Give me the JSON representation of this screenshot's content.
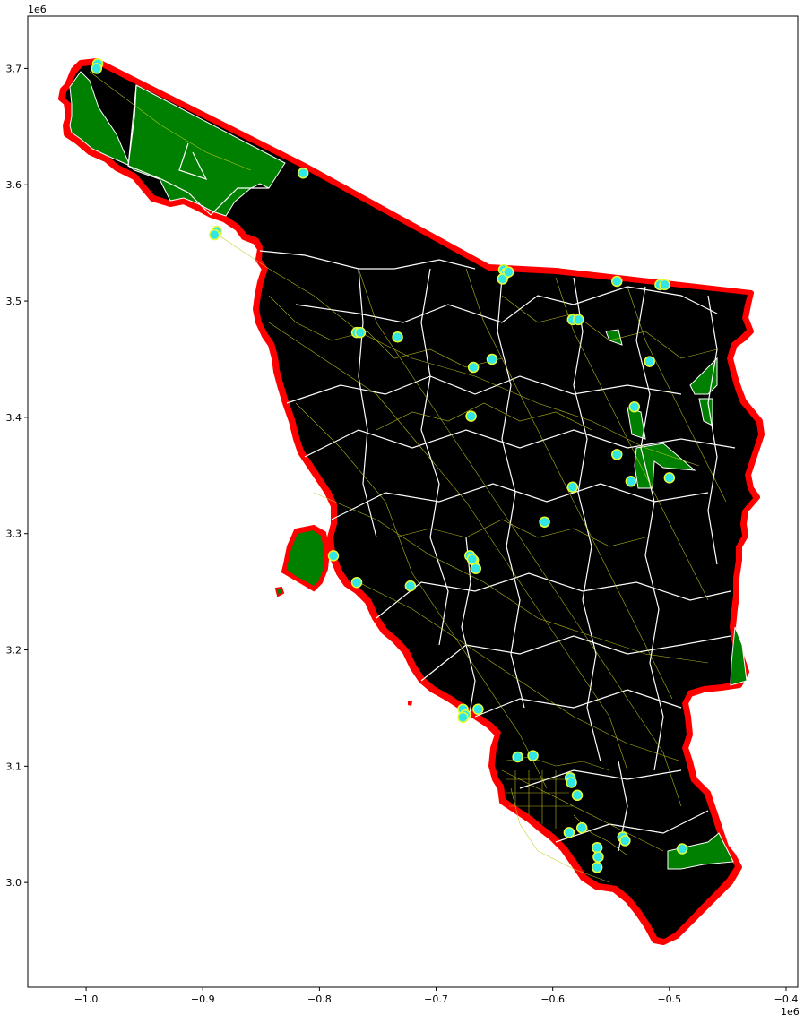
{
  "chart_data": {
    "type": "scatter",
    "title": "",
    "xlabel": "",
    "ylabel": "",
    "x_offset_label": "1e6",
    "y_offset_label": "1e6",
    "xlim": [
      -1.05,
      -0.39
    ],
    "ylim": [
      2.91,
      3.745
    ],
    "x_ticks": [
      -1.0,
      -0.9,
      -0.8,
      -0.7,
      -0.6,
      -0.5,
      -0.4
    ],
    "x_tick_labels": [
      "−1.0",
      "−0.9",
      "−0.8",
      "−0.7",
      "−0.6",
      "−0.5",
      "−0.4"
    ],
    "y_ticks": [
      3.0,
      3.1,
      3.2,
      3.3,
      3.4,
      3.5,
      3.6,
      3.7
    ],
    "y_tick_labels": [
      "3.0",
      "3.1",
      "3.2",
      "3.3",
      "3.4",
      "3.5",
      "3.6",
      "3.7"
    ],
    "grid": false,
    "layers": {
      "region_fill": "#000000",
      "region_outline": "#ff0000",
      "protected_areas_fill": "#008000",
      "district_boundaries": "#ffffff",
      "roads": "#c8c820",
      "points_fill": "#33e6e6",
      "points_edge": "#e6ff33"
    },
    "points": [
      [
        -0.99,
        3.704
      ],
      [
        -0.991,
        3.7
      ],
      [
        -0.888,
        3.56
      ],
      [
        -0.89,
        3.557
      ],
      [
        -0.814,
        3.61
      ],
      [
        -0.768,
        3.473
      ],
      [
        -0.765,
        3.473
      ],
      [
        -0.733,
        3.469
      ],
      [
        -0.668,
        3.443
      ],
      [
        -0.652,
        3.45
      ],
      [
        -0.67,
        3.401
      ],
      [
        -0.642,
        3.527
      ],
      [
        -0.64,
        3.524
      ],
      [
        -0.643,
        3.519
      ],
      [
        -0.638,
        3.525
      ],
      [
        -0.583,
        3.484
      ],
      [
        -0.578,
        3.484
      ],
      [
        -0.545,
        3.517
      ],
      [
        -0.508,
        3.514
      ],
      [
        -0.504,
        3.514
      ],
      [
        -0.517,
        3.448
      ],
      [
        -0.53,
        3.409
      ],
      [
        -0.545,
        3.368
      ],
      [
        -0.533,
        3.345
      ],
      [
        -0.5,
        3.348
      ],
      [
        -0.583,
        3.34
      ],
      [
        -0.607,
        3.31
      ],
      [
        -0.788,
        3.281
      ],
      [
        -0.768,
        3.258
      ],
      [
        -0.722,
        3.255
      ],
      [
        -0.671,
        3.281
      ],
      [
        -0.668,
        3.277
      ],
      [
        -0.666,
        3.27
      ],
      [
        -0.669,
        3.278
      ],
      [
        -0.677,
        3.149
      ],
      [
        -0.675,
        3.144
      ],
      [
        -0.664,
        3.149
      ],
      [
        -0.677,
        3.142
      ],
      [
        -0.63,
        3.108
      ],
      [
        -0.617,
        3.109
      ],
      [
        -0.585,
        3.09
      ],
      [
        -0.584,
        3.086
      ],
      [
        -0.579,
        3.075
      ],
      [
        -0.575,
        3.047
      ],
      [
        -0.586,
        3.043
      ],
      [
        -0.562,
        3.03
      ],
      [
        -0.561,
        3.022
      ],
      [
        -0.562,
        3.013
      ],
      [
        -0.54,
        3.039
      ],
      [
        -0.538,
        3.036
      ],
      [
        -0.489,
        3.029
      ]
    ]
  }
}
